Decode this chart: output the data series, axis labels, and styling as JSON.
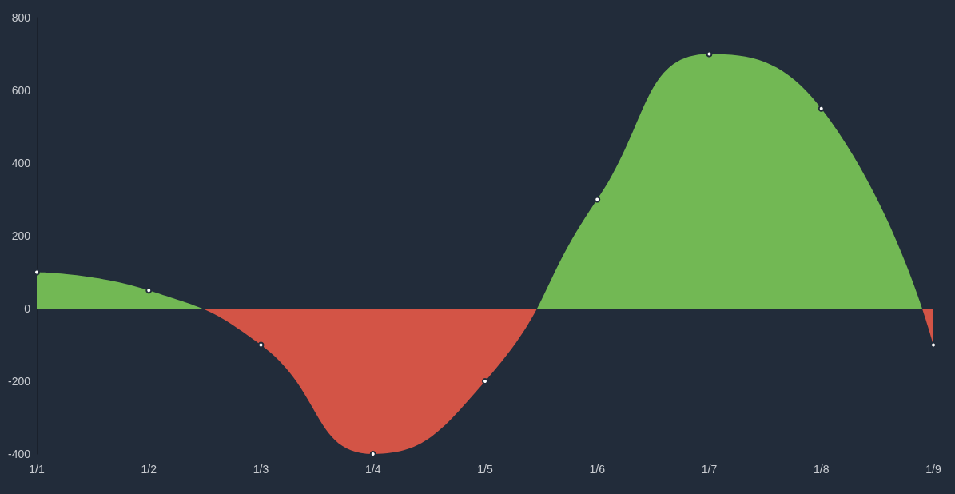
{
  "chart_data": {
    "type": "area",
    "categories": [
      "1/1",
      "1/2",
      "1/3",
      "1/4",
      "1/5",
      "1/6",
      "1/7",
      "1/8",
      "1/9"
    ],
    "series": [
      {
        "values": [
          100,
          50,
          -100,
          -400,
          -200,
          300,
          700,
          550,
          -100
        ],
        "colors": [
          "#72b854",
          "#72b854",
          "#d35446",
          "#d35446",
          "#d35446",
          "#72b854",
          "#72b854",
          "#72b854",
          "#d35446"
        ]
      }
    ],
    "ylim": [
      -400,
      800
    ],
    "yticks": [
      -400,
      -200,
      0,
      200,
      400,
      600,
      800
    ],
    "grid": false,
    "marker": "circle"
  }
}
